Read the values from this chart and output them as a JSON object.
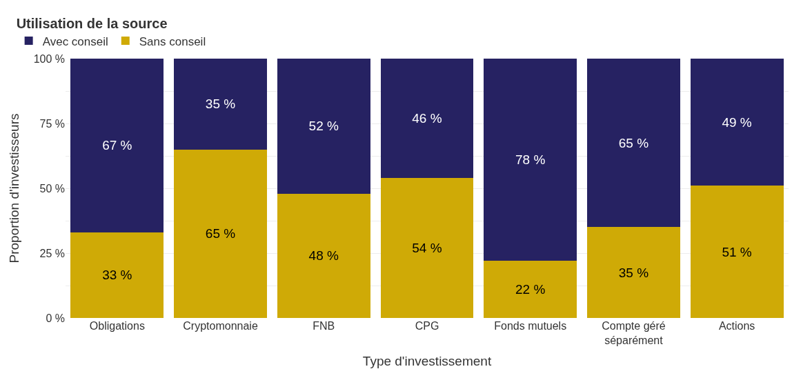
{
  "chart_data": {
    "type": "bar",
    "stacked": true,
    "legend_title": "Utilisation de la source",
    "xlabel": "Type d'investissement",
    "ylabel": "Proportion d'investisseurs",
    "categories": [
      "Obligations",
      "Cryptomonnaie",
      "FNB",
      "CPG",
      "Fonds mutuels",
      "Compte géré séparément",
      "Actions"
    ],
    "series": [
      {
        "name": "Sans conseil",
        "color": "#cfaa06",
        "values": [
          33,
          65,
          48,
          54,
          22,
          35,
          51
        ],
        "value_labels": [
          "33 %",
          "65 %",
          "48 %",
          "54 %",
          "22 %",
          "35 %",
          "51 %"
        ]
      },
      {
        "name": "Avec conseil",
        "color": "#262262",
        "values": [
          67,
          35,
          52,
          46,
          78,
          65,
          49
        ],
        "value_labels": [
          "67 %",
          "35 %",
          "52 %",
          "46 %",
          "78 %",
          "65 %",
          "49 %"
        ]
      }
    ],
    "ylim": [
      0,
      100
    ],
    "yticks": [
      {
        "value": 0,
        "label": "0 %"
      },
      {
        "value": 12.5,
        "label": null
      },
      {
        "value": 25,
        "label": "25 %"
      },
      {
        "value": 37.5,
        "label": null
      },
      {
        "value": 50,
        "label": "50 %"
      },
      {
        "value": 62.5,
        "label": null
      },
      {
        "value": 75,
        "label": "75 %"
      },
      {
        "value": 87.5,
        "label": null
      },
      {
        "value": 100,
        "label": "100 %"
      }
    ],
    "grid": "y",
    "legend": "top left"
  }
}
